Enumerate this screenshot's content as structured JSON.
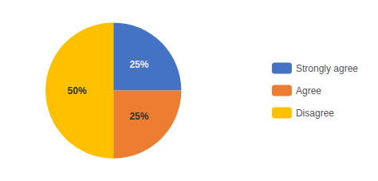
{
  "chart_data": {
    "type": "pie",
    "categories": [
      "Strongly agree",
      "Agree",
      "Disagree"
    ],
    "values": [
      25,
      25,
      50
    ],
    "value_labels": [
      "25%",
      "25%",
      "50%"
    ],
    "colors": [
      "#4472C4",
      "#ED7D31",
      "#FFC000"
    ],
    "data_labels": true,
    "legend": "right"
  }
}
